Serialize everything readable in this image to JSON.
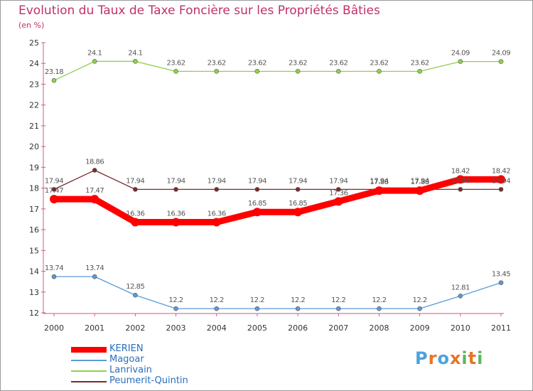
{
  "title": "Evolution du Taux de Taxe Foncière sur les Propriétés Bâties",
  "subtitle": "(en %)",
  "logo_text": "Proxiti",
  "logo_colors": [
    "#4aa3df",
    "#e8742a",
    "#4aa3df",
    "#e8742a",
    "#5cb85c",
    "#e8742a",
    "#5cb85c"
  ],
  "chart_data": {
    "type": "line",
    "x": [
      "2000",
      "2001",
      "2002",
      "2003",
      "2004",
      "2005",
      "2006",
      "2007",
      "2008",
      "2009",
      "2010",
      "2011"
    ],
    "ylim": [
      12,
      25
    ],
    "yticks": [
      "12",
      "13",
      "14",
      "15",
      "16",
      "17",
      "18",
      "19",
      "20",
      "21",
      "22",
      "23",
      "24",
      "25"
    ],
    "grid": false,
    "legend": "bottom-left",
    "series": [
      {
        "name": "KERIEN",
        "color": "#ff0000",
        "values": [
          17.47,
          17.47,
          16.36,
          16.36,
          16.36,
          16.85,
          16.85,
          17.36,
          17.88,
          17.88,
          18.42,
          18.42
        ],
        "labels": [
          "17.47",
          "17.47",
          "16.36",
          "16.36",
          "16.36",
          "16.85",
          "16.85",
          "17.36",
          "17.88",
          "17.88",
          "18.42",
          "18.42"
        ]
      },
      {
        "name": "Magoar",
        "color": "#5b9bd5",
        "values": [
          13.74,
          13.74,
          12.85,
          12.2,
          12.2,
          12.2,
          12.2,
          12.2,
          12.2,
          12.2,
          12.81,
          13.45
        ],
        "labels": [
          "13.74",
          "13.74",
          "12.85",
          "12.2",
          "12.2",
          "12.2",
          "12.2",
          "12.2",
          "12.2",
          "12.2",
          "12.81",
          "13.45"
        ]
      },
      {
        "name": "Lanrivain",
        "color": "#92d050",
        "values": [
          23.18,
          24.1,
          24.1,
          23.62,
          23.62,
          23.62,
          23.62,
          23.62,
          23.62,
          23.62,
          24.09,
          24.09
        ],
        "labels": [
          "23.18",
          "24.1",
          "24.1",
          "23.62",
          "23.62",
          "23.62",
          "23.62",
          "23.62",
          "23.62",
          "23.62",
          "24.09",
          "24.09"
        ]
      },
      {
        "name": "Peumerit-Quintin",
        "color": "#7b2a2a",
        "values": [
          17.94,
          18.86,
          17.94,
          17.94,
          17.94,
          17.94,
          17.94,
          17.94,
          17.94,
          17.94,
          17.94,
          17.94
        ],
        "labels": [
          "17.94",
          "18.86",
          "17.94",
          "17.94",
          "17.94",
          "17.94",
          "17.94",
          "17.94",
          "17.94",
          "17.94",
          "17.94",
          "17.94"
        ]
      }
    ]
  }
}
